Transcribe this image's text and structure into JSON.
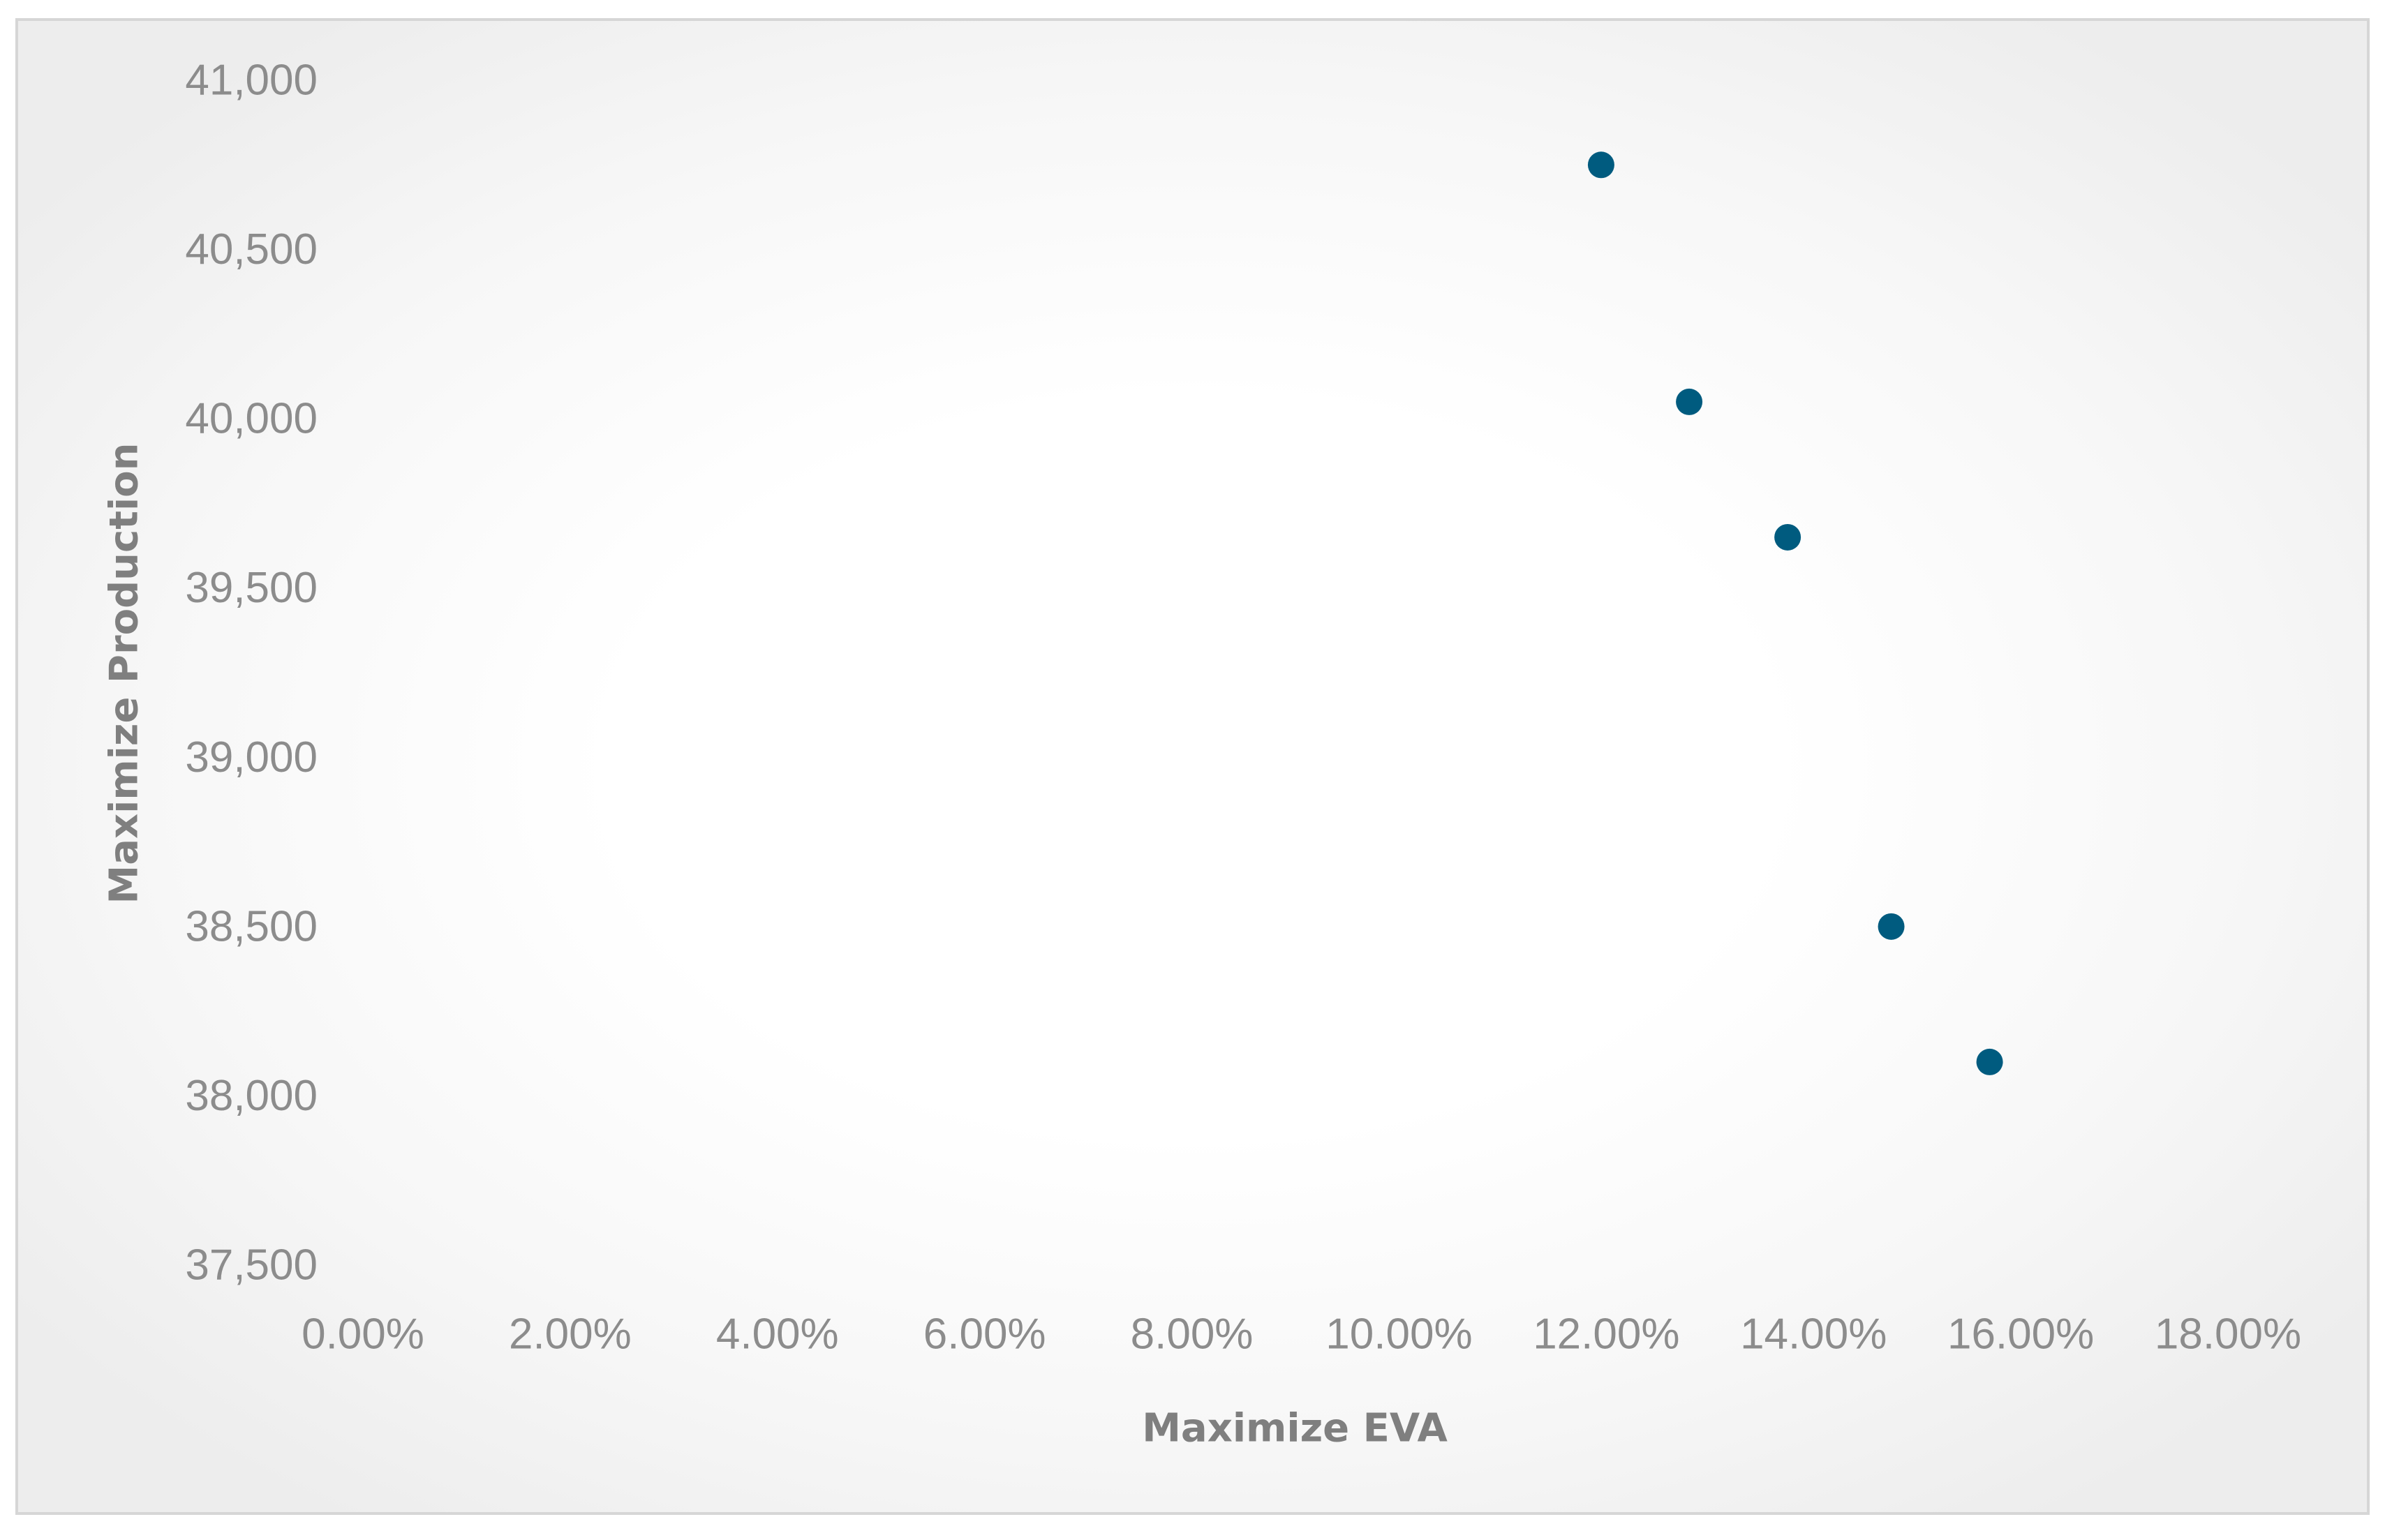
{
  "chart_data": {
    "type": "scatter",
    "title": "",
    "xlabel": "Maximize EVA",
    "ylabel": "Maximize Production",
    "xlim": [
      0,
      0.18
    ],
    "ylim": [
      37500,
      41000
    ],
    "x_ticks": [
      0,
      0.02,
      0.04,
      0.06,
      0.08,
      0.1,
      0.12,
      0.14,
      0.16,
      0.18
    ],
    "x_tick_labels": [
      "0.00%",
      "2.00%",
      "4.00%",
      "6.00%",
      "8.00%",
      "10.00%",
      "12.00%",
      "14.00%",
      "16.00%",
      "18.00%"
    ],
    "y_ticks": [
      37500,
      38000,
      38500,
      39000,
      39500,
      40000,
      40500,
      41000
    ],
    "y_tick_labels": [
      "37,500",
      "38,000",
      "38,500",
      "39,000",
      "39,500",
      "40,000",
      "40,500",
      "41,000"
    ],
    "grid": false,
    "legend": "none",
    "marker_color": "#005b7f",
    "series": [
      {
        "points": [
          {
            "x": 0.1195,
            "y": 40750
          },
          {
            "x": 0.128,
            "y": 40050
          },
          {
            "x": 0.1375,
            "y": 39650
          },
          {
            "x": 0.1475,
            "y": 38500
          },
          {
            "x": 0.157,
            "y": 38100
          }
        ]
      }
    ]
  }
}
